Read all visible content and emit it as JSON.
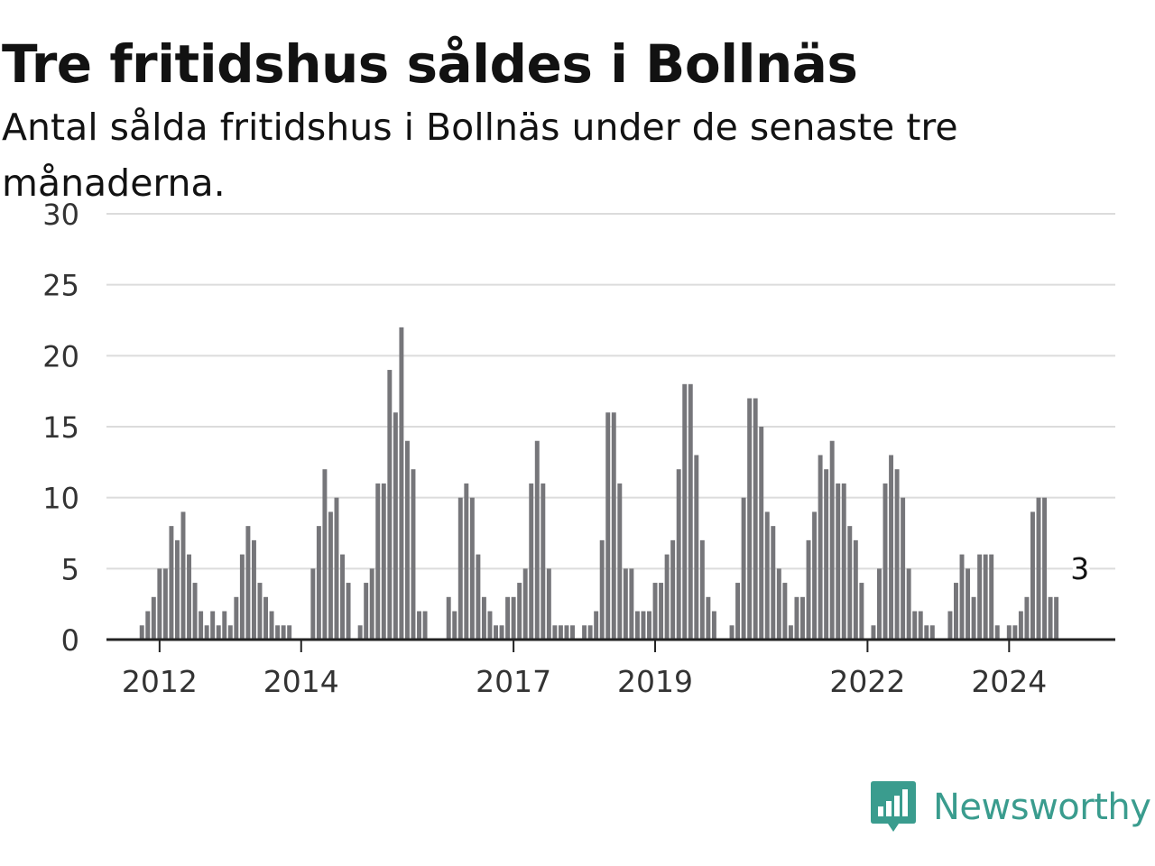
{
  "header": {
    "title": "Tre fritidshus såldes i Bollnäs",
    "subtitle": "Antal sålda fritidshus i Bollnäs under de senaste tre månaderna."
  },
  "brand": {
    "name": "Newsworthy",
    "icon": "newsworthy-chart-bubble-icon",
    "color": "#3a9c8e"
  },
  "colors": {
    "bar": "#76767a",
    "highlight": "#1a9c8c",
    "grid": "#dcdcdc",
    "axis": "#222222"
  },
  "chart_data": {
    "type": "bar",
    "title": "Tre fritidshus såldes i Bollnäs",
    "subtitle": "Antal sålda fritidshus i Bollnäs under de senaste tre månaderna.",
    "xlabel": "",
    "ylabel": "",
    "ylim": [
      0,
      30
    ],
    "yticks": [
      0,
      5,
      10,
      15,
      20,
      25,
      30
    ],
    "xlim": [
      "2011-04",
      "2025-07"
    ],
    "xticks": [
      {
        "label": "2012",
        "month": "2012-01"
      },
      {
        "label": "2014",
        "month": "2014-01"
      },
      {
        "label": "2017",
        "month": "2017-01"
      },
      {
        "label": "2019",
        "month": "2019-01"
      },
      {
        "label": "2022",
        "month": "2022-01"
      },
      {
        "label": "2024",
        "month": "2024-01"
      }
    ],
    "grid": true,
    "start_month": "2011-10",
    "values": [
      1,
      2,
      3,
      5,
      5,
      8,
      7,
      9,
      6,
      4,
      2,
      1,
      2,
      1,
      2,
      1,
      3,
      6,
      8,
      7,
      4,
      3,
      2,
      1,
      1,
      1,
      0,
      0,
      0,
      5,
      8,
      12,
      9,
      10,
      6,
      4,
      0,
      1,
      4,
      5,
      11,
      11,
      19,
      16,
      22,
      14,
      12,
      2,
      2,
      0,
      0,
      0,
      3,
      2,
      10,
      11,
      10,
      6,
      3,
      2,
      1,
      1,
      3,
      3,
      4,
      5,
      11,
      14,
      11,
      5,
      1,
      1,
      1,
      1,
      0,
      1,
      1,
      2,
      7,
      16,
      16,
      11,
      5,
      5,
      2,
      2,
      2,
      4,
      4,
      6,
      7,
      12,
      18,
      18,
      13,
      7,
      3,
      2,
      0,
      0,
      1,
      4,
      10,
      17,
      17,
      15,
      9,
      8,
      5,
      4,
      1,
      3,
      3,
      7,
      9,
      13,
      12,
      14,
      11,
      11,
      8,
      7,
      4,
      0,
      1,
      5,
      11,
      13,
      12,
      10,
      5,
      2,
      2,
      1,
      1,
      0,
      0,
      2,
      4,
      6,
      5,
      3,
      6,
      6,
      6,
      1,
      0,
      1,
      1,
      2,
      3,
      9,
      10,
      10,
      3,
      3
    ],
    "highlight": {
      "month": "2025-01",
      "value": 3,
      "label": "3"
    }
  }
}
